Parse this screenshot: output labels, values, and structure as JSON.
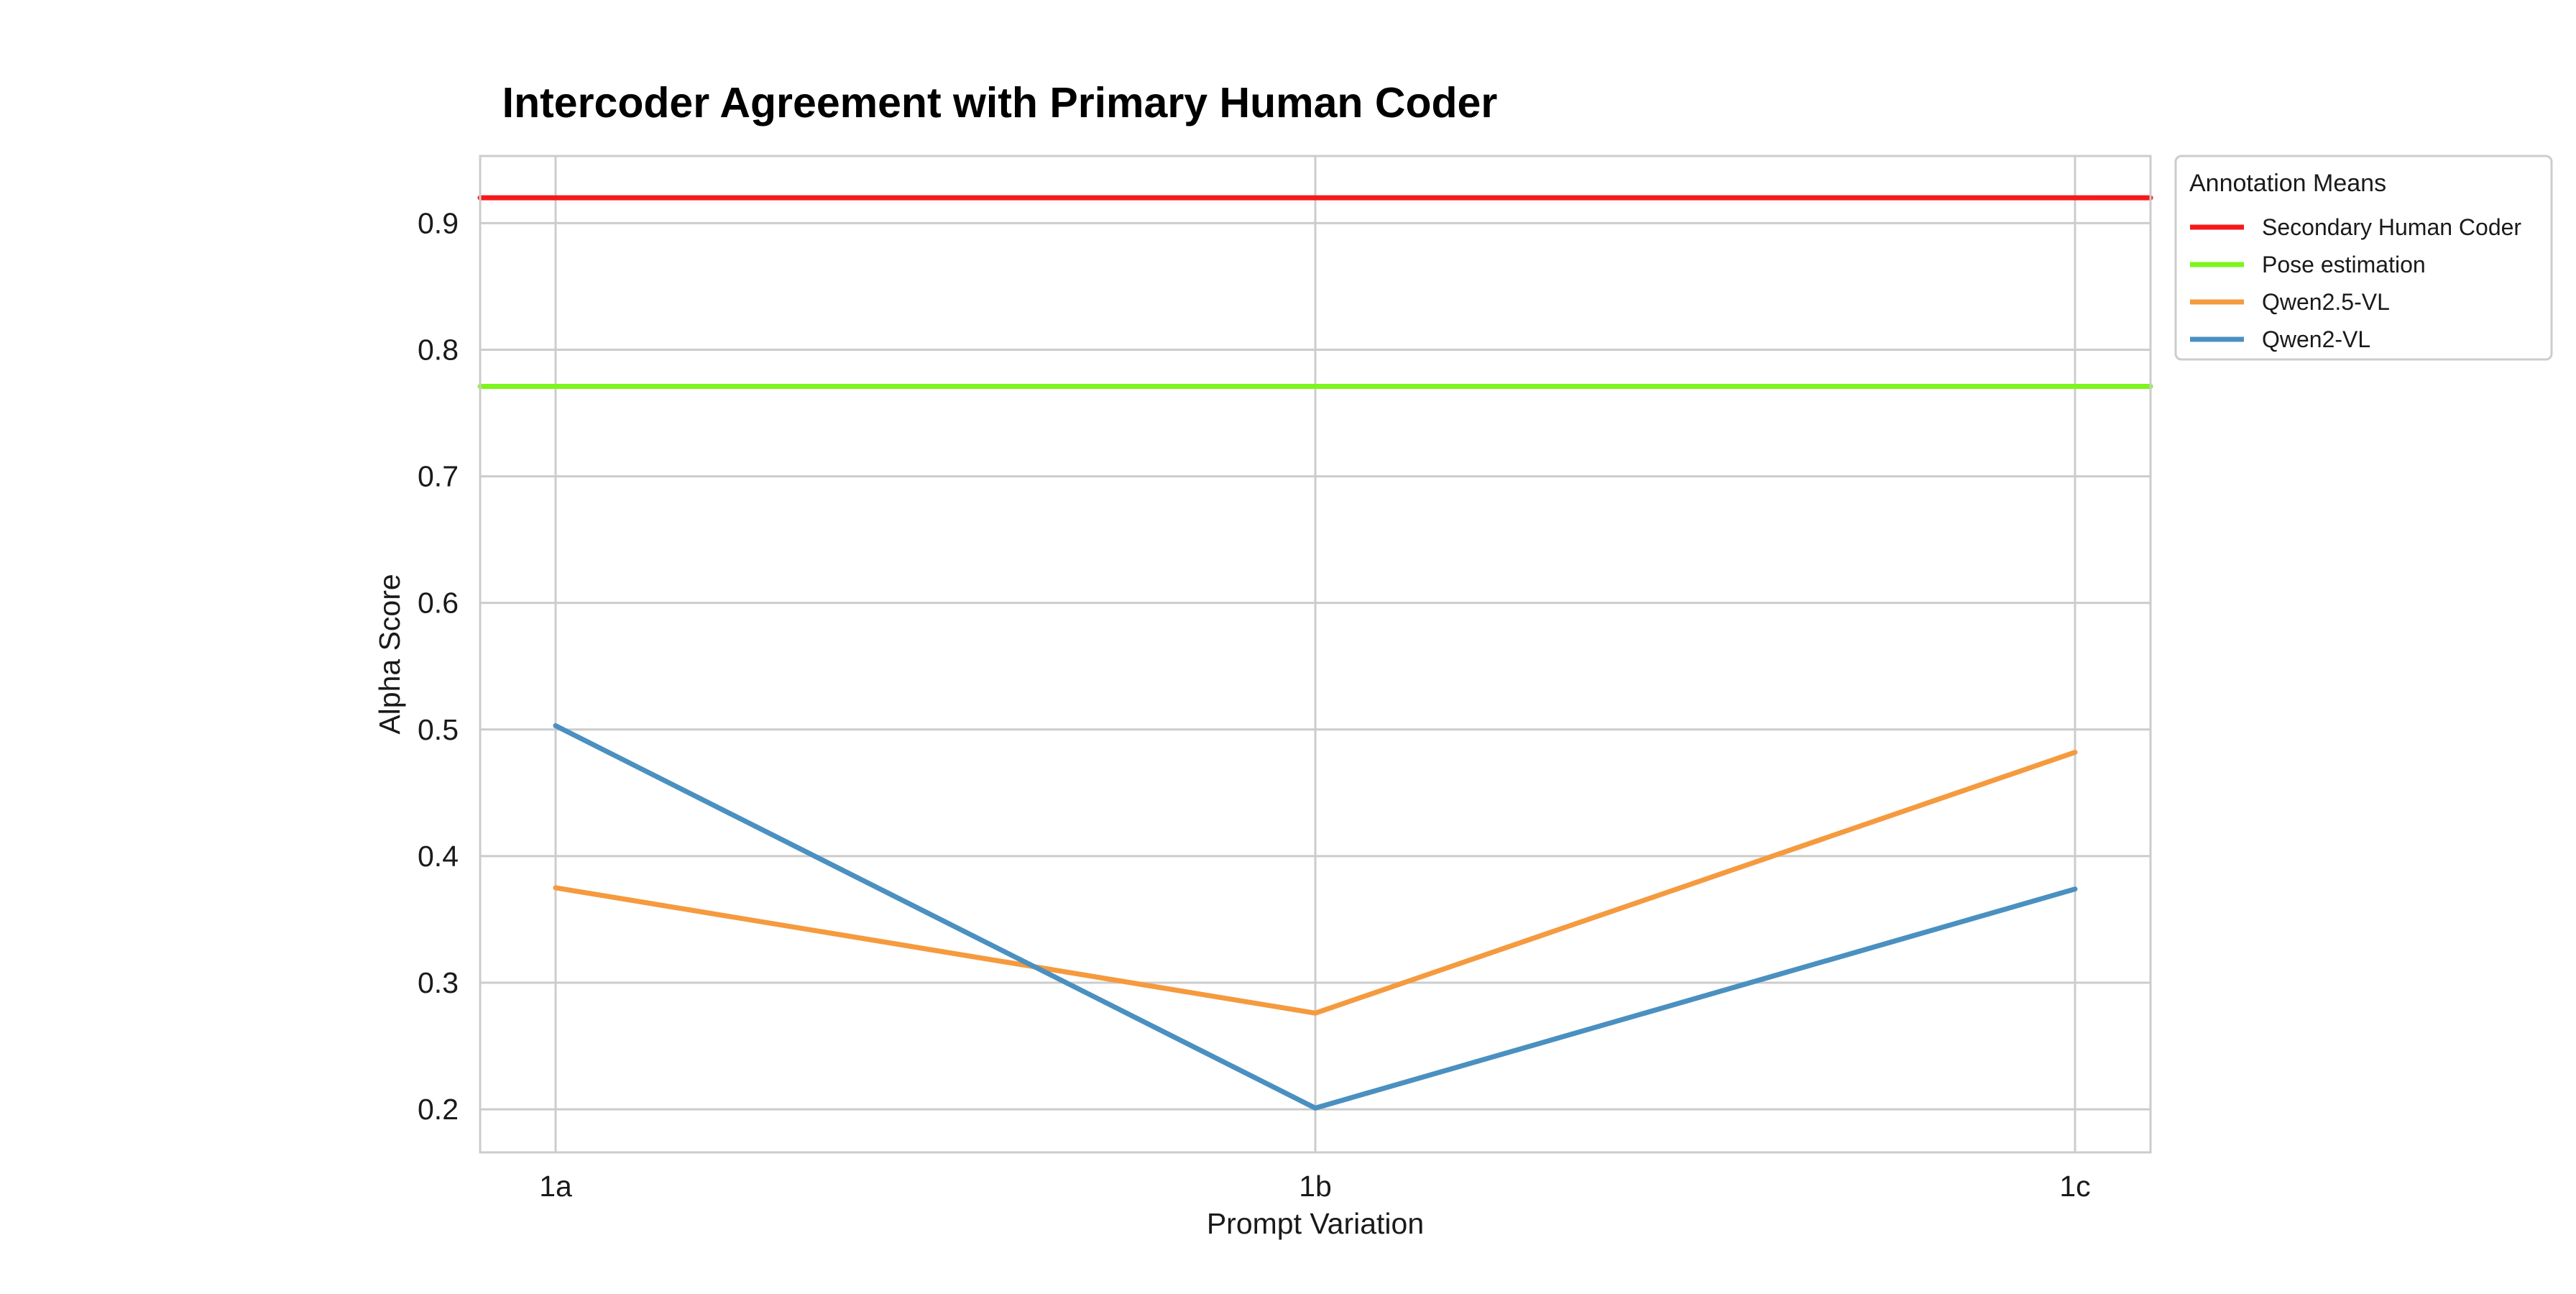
{
  "chart_data": {
    "type": "line",
    "title": "Intercoder Agreement with Primary Human Coder",
    "xlabel": "Prompt Variation",
    "ylabel": "Alpha Score",
    "categories": [
      "1a",
      "1b",
      "1c"
    ],
    "ylim": [
      0.166,
      0.953
    ],
    "yticks": [
      0.2,
      0.3,
      0.4,
      0.5,
      0.6,
      0.7,
      0.8,
      0.9
    ],
    "grid": true,
    "legend": {
      "title": "Annotation Means",
      "placement": "outside-top-right"
    },
    "series": [
      {
        "name": "Secondary Human Coder",
        "color": "#f51a1a",
        "values": [
          0.92,
          0.92,
          0.92
        ]
      },
      {
        "name": "Pose estimation",
        "color": "#7cf51a",
        "values": [
          0.771,
          0.771,
          0.771
        ]
      },
      {
        "name": "Qwen2.5-VL",
        "color": "#f59a3e",
        "values": [
          0.375,
          0.276,
          0.482
        ]
      },
      {
        "name": "Qwen2-VL",
        "color": "#4a90c0",
        "values": [
          0.503,
          0.201,
          0.374
        ]
      }
    ]
  }
}
